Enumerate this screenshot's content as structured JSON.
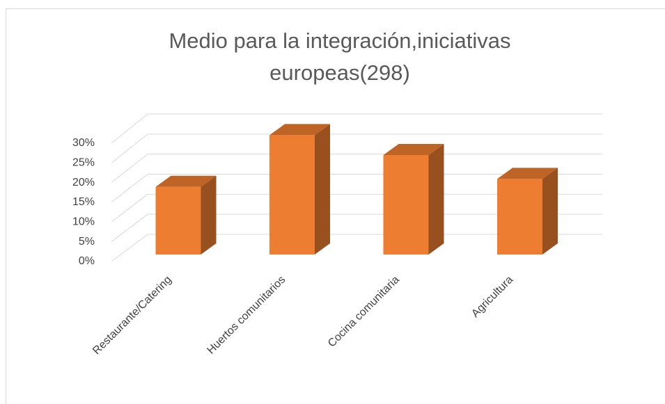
{
  "chart_data": {
    "type": "bar3d",
    "title": "Medio para la integración,iniciativas europeas(298)",
    "categories": [
      "Restaurante/Catering",
      "Huertos comunitarios",
      "Cocina comunitaria",
      "Agricultura"
    ],
    "values": [
      17,
      30,
      25,
      19
    ],
    "color": "#ed7d31",
    "ylim": [
      0,
      30
    ],
    "yticks": [
      {
        "value": 0,
        "label": "0%"
      },
      {
        "value": 5,
        "label": "5%"
      },
      {
        "value": 10,
        "label": "10%"
      },
      {
        "value": 15,
        "label": "15%"
      },
      {
        "value": 20,
        "label": "20%"
      },
      {
        "value": 25,
        "label": "25%"
      },
      {
        "value": 30,
        "label": "30%"
      }
    ],
    "grid": true
  }
}
